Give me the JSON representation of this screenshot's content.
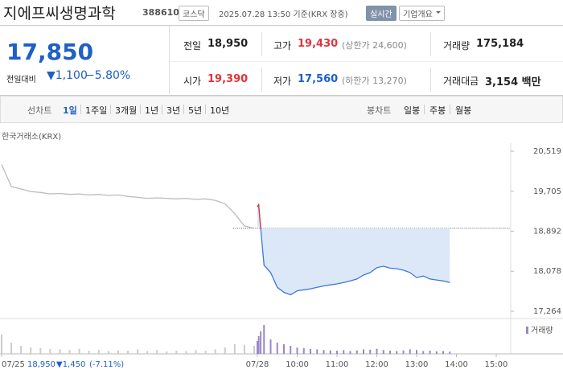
{
  "header": {
    "name": "지에프씨생명과학",
    "code": "388610",
    "market": "코스닥",
    "timestamp": "2025.07.28 13:50 기준(KRX 장중)",
    "realtime_button": "실시간",
    "overview_button": "기업개요"
  },
  "quote": {
    "price": "17,850",
    "change_label": "전일대비",
    "change": "▼1,100",
    "change_rate": "−5.80%"
  },
  "stats": [
    {
      "label": "전일",
      "value": "18,950"
    },
    {
      "label": "고가",
      "value": "19,430",
      "note": "(상한가 24,600)"
    },
    {
      "label": "거래량",
      "value": "175,184"
    },
    {
      "label": "시가",
      "value": "19,390"
    },
    {
      "label": "저가",
      "value": "17,560",
      "note": "(하한가 13,270)"
    },
    {
      "label": "거래대금",
      "value": "3,154 백만"
    }
  ],
  "tabs": {
    "line_label": "선차트",
    "line_periods": [
      "1일",
      "1주일",
      "3개월",
      "1년",
      "3년",
      "5년",
      "10년"
    ],
    "candle_label": "봉차트",
    "candle_periods": [
      "일봉",
      "주봉",
      "월봉"
    ]
  },
  "chart_data": {
    "type": "line",
    "source": "한국거래소(KRX)",
    "ylim": [
      17264,
      20519
    ],
    "yticks": [
      {
        "value": 20519,
        "label": "20,519"
      },
      {
        "value": 19705,
        "label": "19,705"
      },
      {
        "value": 18892,
        "label": "18,892"
      },
      {
        "value": 18078,
        "label": "18,078"
      },
      {
        "value": 17264,
        "label": "17,264"
      }
    ],
    "prev_close": 18950,
    "up_color": "#e0343b",
    "xticks": [
      "07/25",
      "07/28",
      "10:00",
      "11:00",
      "12:00",
      "13:00",
      "14:00",
      "15:00"
    ],
    "volume_label": "거래량",
    "volume_lim": [
      0,
      100
    ],
    "prev_summary": {
      "close": "18,950",
      "change": "▼1,450",
      "rate": "(-7.11%)"
    },
    "series": [
      {
        "day": "07/25",
        "color": "#bbbbbb",
        "volume_color": "#cccccc",
        "x": [
          "09:00",
          "09:15",
          "09:30",
          "09:45",
          "10:00",
          "10:15",
          "10:30",
          "10:45",
          "11:00",
          "11:15",
          "11:30",
          "11:45",
          "12:00",
          "12:15",
          "12:30",
          "12:45",
          "13:00",
          "13:15",
          "13:30",
          "13:45",
          "14:00",
          "14:15",
          "14:30",
          "14:45",
          "15:00",
          "15:15",
          "15:30"
        ],
        "values": [
          20250,
          19800,
          19750,
          19700,
          19680,
          19650,
          19660,
          19640,
          19650,
          19630,
          19640,
          19620,
          19630,
          19600,
          19580,
          19560,
          19570,
          19560,
          19550,
          19560,
          19540,
          19550,
          19520,
          19450,
          19250,
          19000,
          18950
        ],
        "volume": [
          60,
          35,
          25,
          20,
          18,
          15,
          14,
          12,
          16,
          10,
          12,
          9,
          11,
          10,
          14,
          9,
          12,
          8,
          10,
          9,
          12,
          10,
          14,
          20,
          30,
          28,
          25
        ]
      },
      {
        "day": "07/28",
        "color": "#3c78d8",
        "volume_color": "#9b87c9",
        "x": [
          "09:00",
          "09:02",
          "09:05",
          "09:10",
          "09:20",
          "09:30",
          "09:40",
          "09:50",
          "10:00",
          "10:10",
          "10:20",
          "10:30",
          "10:40",
          "10:50",
          "11:00",
          "11:10",
          "11:20",
          "11:30",
          "11:40",
          "11:50",
          "12:00",
          "12:10",
          "12:20",
          "12:30",
          "12:40",
          "12:50",
          "13:00",
          "13:10",
          "13:20",
          "13:30",
          "13:40",
          "13:50"
        ],
        "values": [
          19390,
          19430,
          18950,
          18200,
          18050,
          17750,
          17650,
          17600,
          17680,
          17700,
          17720,
          17750,
          17780,
          17800,
          17820,
          17850,
          17880,
          17920,
          18000,
          18050,
          18150,
          18180,
          18140,
          18130,
          18100,
          18050,
          17950,
          17980,
          17920,
          17900,
          17880,
          17850
        ],
        "volume": [
          40,
          55,
          70,
          90,
          45,
          35,
          30,
          25,
          20,
          18,
          15,
          14,
          12,
          11,
          10,
          12,
          9,
          11,
          14,
          13,
          16,
          12,
          10,
          9,
          11,
          14,
          12,
          9,
          10,
          8,
          9,
          7
        ]
      }
    ]
  }
}
